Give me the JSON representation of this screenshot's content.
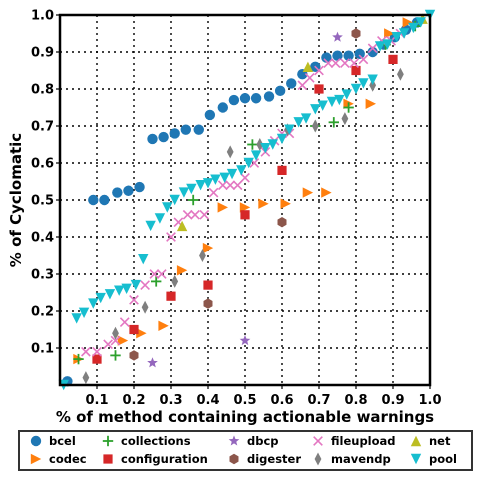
{
  "chart_data": {
    "type": "scatter",
    "xlabel": "% of method containing actionable warnings",
    "ylabel": "% of Cyclomatic",
    "xlim": [
      0,
      1.0
    ],
    "ylim": [
      0,
      1.0
    ],
    "xticks": [
      0.1,
      0.2,
      0.3,
      0.4,
      0.5,
      0.6,
      0.7,
      0.8,
      0.9,
      1.0
    ],
    "yticks": [
      0.1,
      0.2,
      0.3,
      0.4,
      0.5,
      0.6,
      0.7,
      0.8,
      0.9,
      1.0
    ],
    "xtick_labels": [
      "0.1",
      "0.2",
      "0.3",
      "0.4",
      "0.5",
      "0.6",
      "0.7",
      "0.8",
      "0.9",
      "1.0"
    ],
    "ytick_labels": [
      "0.1",
      "0.2",
      "0.3",
      "0.4",
      "0.5",
      "0.6",
      "0.7",
      "0.8",
      "0.9",
      "1.0"
    ],
    "grid": true,
    "legend_position": "bottom",
    "series": [
      {
        "name": "bcel",
        "marker": "circle",
        "color": "#1f77b4",
        "points": [
          [
            0.02,
            0.01
          ],
          [
            0.09,
            0.5
          ],
          [
            0.12,
            0.5
          ],
          [
            0.155,
            0.52
          ],
          [
            0.185,
            0.525
          ],
          [
            0.215,
            0.535
          ],
          [
            0.25,
            0.665
          ],
          [
            0.28,
            0.67
          ],
          [
            0.31,
            0.68
          ],
          [
            0.34,
            0.69
          ],
          [
            0.375,
            0.69
          ],
          [
            0.405,
            0.73
          ],
          [
            0.44,
            0.75
          ],
          [
            0.47,
            0.77
          ],
          [
            0.5,
            0.775
          ],
          [
            0.53,
            0.775
          ],
          [
            0.565,
            0.78
          ],
          [
            0.595,
            0.795
          ],
          [
            0.625,
            0.815
          ],
          [
            0.655,
            0.84
          ],
          [
            0.69,
            0.86
          ],
          [
            0.72,
            0.885
          ],
          [
            0.75,
            0.89
          ],
          [
            0.78,
            0.89
          ],
          [
            0.81,
            0.895
          ],
          [
            0.845,
            0.9
          ],
          [
            0.875,
            0.92
          ],
          [
            0.905,
            0.94
          ],
          [
            0.935,
            0.96
          ],
          [
            0.965,
            0.98
          ]
        ]
      },
      {
        "name": "codec",
        "marker": "triangle-right",
        "color": "#ff7f0e",
        "points": [
          [
            0.05,
            0.07
          ],
          [
            0.17,
            0.12
          ],
          [
            0.22,
            0.14
          ],
          [
            0.28,
            0.16
          ],
          [
            0.33,
            0.31
          ],
          [
            0.4,
            0.37
          ],
          [
            0.44,
            0.48
          ],
          [
            0.5,
            0.48
          ],
          [
            0.55,
            0.49
          ],
          [
            0.61,
            0.49
          ],
          [
            0.67,
            0.52
          ],
          [
            0.72,
            0.52
          ],
          [
            0.78,
            0.76
          ],
          [
            0.84,
            0.76
          ],
          [
            0.89,
            0.95
          ],
          [
            0.94,
            0.98
          ]
        ]
      },
      {
        "name": "collections",
        "marker": "plus",
        "color": "#2ca02c",
        "points": [
          [
            0.05,
            0.07
          ],
          [
            0.15,
            0.08
          ],
          [
            0.26,
            0.28
          ],
          [
            0.36,
            0.5
          ],
          [
            0.52,
            0.65
          ],
          [
            0.69,
            0.7
          ],
          [
            0.74,
            0.71
          ],
          [
            0.78,
            0.75
          ],
          [
            0.88,
            0.92
          ],
          [
            0.96,
            0.97
          ]
        ]
      },
      {
        "name": "configuration",
        "marker": "square",
        "color": "#d62728",
        "points": [
          [
            0.1,
            0.07
          ],
          [
            0.2,
            0.15
          ],
          [
            0.3,
            0.24
          ],
          [
            0.4,
            0.27
          ],
          [
            0.5,
            0.46
          ],
          [
            0.6,
            0.58
          ],
          [
            0.7,
            0.8
          ],
          [
            0.8,
            0.85
          ],
          [
            0.9,
            0.88
          ]
        ]
      },
      {
        "name": "dbcp",
        "marker": "star",
        "color": "#9467bd",
        "points": [
          [
            0.25,
            0.06
          ],
          [
            0.5,
            0.12
          ],
          [
            0.75,
            0.94
          ]
        ]
      },
      {
        "name": "digester",
        "marker": "hexagon",
        "color": "#8c564b",
        "points": [
          [
            0.2,
            0.08
          ],
          [
            0.4,
            0.22
          ],
          [
            0.6,
            0.44
          ],
          [
            0.8,
            0.95
          ]
        ]
      },
      {
        "name": "fileupload",
        "marker": "x",
        "color": "#e377c2",
        "points": [
          [
            0.07,
            0.09
          ],
          [
            0.1,
            0.09
          ],
          [
            0.13,
            0.11
          ],
          [
            0.15,
            0.12
          ],
          [
            0.175,
            0.17
          ],
          [
            0.2,
            0.23
          ],
          [
            0.23,
            0.27
          ],
          [
            0.255,
            0.3
          ],
          [
            0.275,
            0.3
          ],
          [
            0.3,
            0.4
          ],
          [
            0.32,
            0.44
          ],
          [
            0.345,
            0.46
          ],
          [
            0.365,
            0.46
          ],
          [
            0.39,
            0.46
          ],
          [
            0.415,
            0.52
          ],
          [
            0.44,
            0.54
          ],
          [
            0.46,
            0.54
          ],
          [
            0.48,
            0.54
          ],
          [
            0.5,
            0.56
          ],
          [
            0.525,
            0.6
          ],
          [
            0.555,
            0.63
          ],
          [
            0.58,
            0.66
          ],
          [
            0.6,
            0.68
          ],
          [
            0.62,
            0.68
          ],
          [
            0.655,
            0.81
          ],
          [
            0.675,
            0.83
          ],
          [
            0.7,
            0.85
          ],
          [
            0.725,
            0.87
          ],
          [
            0.745,
            0.87
          ],
          [
            0.77,
            0.87
          ],
          [
            0.795,
            0.87
          ],
          [
            0.82,
            0.88
          ],
          [
            0.845,
            0.91
          ],
          [
            0.87,
            0.93
          ],
          [
            0.895,
            0.93
          ],
          [
            0.92,
            0.95
          ]
        ]
      },
      {
        "name": "mavendp",
        "marker": "diamond",
        "color": "#7f7f7f",
        "points": [
          [
            0.07,
            0.02
          ],
          [
            0.15,
            0.14
          ],
          [
            0.23,
            0.21
          ],
          [
            0.31,
            0.28
          ],
          [
            0.385,
            0.35
          ],
          [
            0.46,
            0.63
          ],
          [
            0.54,
            0.65
          ],
          [
            0.615,
            0.69
          ],
          [
            0.69,
            0.7
          ],
          [
            0.77,
            0.72
          ],
          [
            0.845,
            0.81
          ],
          [
            0.92,
            0.84
          ]
        ]
      },
      {
        "name": "net",
        "marker": "triangle-up",
        "color": "#bcbd22",
        "points": [
          [
            0.33,
            0.43
          ],
          [
            0.67,
            0.86
          ],
          [
            0.98,
            0.99
          ]
        ]
      },
      {
        "name": "pool",
        "marker": "triangle-down",
        "color": "#17becf",
        "points": [
          [
            0.01,
            0.0
          ],
          [
            0.045,
            0.18
          ],
          [
            0.065,
            0.195
          ],
          [
            0.09,
            0.22
          ],
          [
            0.11,
            0.235
          ],
          [
            0.135,
            0.245
          ],
          [
            0.16,
            0.255
          ],
          [
            0.18,
            0.26
          ],
          [
            0.205,
            0.27
          ],
          [
            0.225,
            0.34
          ],
          [
            0.245,
            0.43
          ],
          [
            0.27,
            0.45
          ],
          [
            0.29,
            0.48
          ],
          [
            0.31,
            0.5
          ],
          [
            0.335,
            0.52
          ],
          [
            0.355,
            0.53
          ],
          [
            0.38,
            0.54
          ],
          [
            0.4,
            0.545
          ],
          [
            0.42,
            0.555
          ],
          [
            0.445,
            0.56
          ],
          [
            0.465,
            0.57
          ],
          [
            0.49,
            0.58
          ],
          [
            0.51,
            0.6
          ],
          [
            0.53,
            0.62
          ],
          [
            0.555,
            0.64
          ],
          [
            0.575,
            0.65
          ],
          [
            0.6,
            0.665
          ],
          [
            0.62,
            0.69
          ],
          [
            0.645,
            0.71
          ],
          [
            0.665,
            0.72
          ],
          [
            0.69,
            0.745
          ],
          [
            0.71,
            0.755
          ],
          [
            0.735,
            0.765
          ],
          [
            0.755,
            0.77
          ],
          [
            0.775,
            0.785
          ],
          [
            0.8,
            0.8
          ],
          [
            0.82,
            0.815
          ],
          [
            0.845,
            0.825
          ],
          [
            0.865,
            0.915
          ],
          [
            0.885,
            0.92
          ],
          [
            0.91,
            0.94
          ],
          [
            0.93,
            0.95
          ],
          [
            0.955,
            0.965
          ],
          [
            0.975,
            0.98
          ],
          [
            1.0,
            1.0
          ]
        ]
      }
    ]
  }
}
